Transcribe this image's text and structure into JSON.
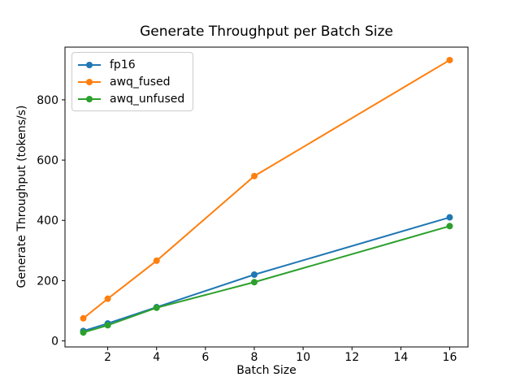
{
  "window": {
    "background": "#ffffff"
  },
  "chart_data": {
    "type": "line",
    "title": "Generate Throughput per Batch Size",
    "xlabel": "Batch Size",
    "ylabel": "Generate Throughput (tokens/s)",
    "x": [
      1,
      2,
      4,
      8,
      16
    ],
    "series": [
      {
        "name": "fp16",
        "color": "#1f77b4",
        "values": [
          33,
          58,
          112,
          220,
          410
        ]
      },
      {
        "name": "awq_fused",
        "color": "#ff7f0e",
        "values": [
          75,
          140,
          266,
          547,
          932
        ]
      },
      {
        "name": "awq_unfused",
        "color": "#2ca02c",
        "values": [
          28,
          52,
          110,
          195,
          381
        ]
      }
    ],
    "xlim": [
      0.25,
      16.75
    ],
    "ylim": [
      -20,
      975
    ],
    "xticks": [
      2,
      4,
      6,
      8,
      10,
      12,
      14,
      16
    ],
    "yticks": [
      0,
      200,
      400,
      600,
      800
    ],
    "grid": false,
    "legend_position": "upper left",
    "marker": "o",
    "axis_color": "#000000"
  }
}
